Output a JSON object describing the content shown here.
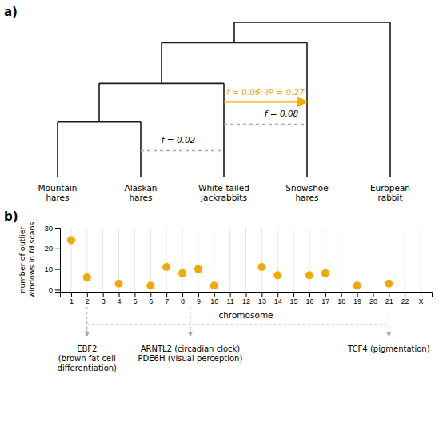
{
  "chart_data": [
    {
      "type": "tree",
      "title": "a)",
      "categories": [
        "Mountain\nhares",
        "Alaskan\nhares",
        "White-tailed\njackrabbits",
        "Snowshoe\nhares",
        "European\nrabbit"
      ],
      "annotations": [
        {
          "text": "f = 0.02",
          "categories": [
            "Alaskan\nhares",
            "White-tailed\njackrabbits"
          ],
          "line_style": "dotted"
        },
        {
          "text": "f = 0.06; IP = 0.27",
          "categories": [
            "White-tailed\njackrabbits",
            "Snowshoe\nhares"
          ],
          "line_style": "arrow",
          "color": "#F5A800"
        },
        {
          "text": "f = 0.08",
          "categories": [
            "White-tailed\njackrabbits",
            "Snowshoe\nhares"
          ],
          "line_style": "dotted"
        }
      ]
    },
    {
      "type": "scatter",
      "title": "b)",
      "categories": [
        "1",
        "2",
        "3",
        "4",
        "5",
        "6",
        "7",
        "8",
        "9",
        "10",
        "11",
        "12",
        "13",
        "14",
        "15",
        "16",
        "17",
        "18",
        "19",
        "20",
        "21",
        "22",
        "X"
      ],
      "values": [
        24,
        6,
        null,
        3,
        null,
        2,
        11,
        8,
        10,
        2,
        null,
        null,
        11,
        7,
        null,
        7,
        8,
        null,
        2,
        null,
        3,
        null,
        null
      ],
      "color": "#F5A800",
      "x_label": "chromosome",
      "y_label": "number of outlier\nwindows in fd scans",
      "ylim": [
        -1,
        30
      ],
      "yticks": [
        0,
        10,
        20,
        30
      ],
      "grid": true,
      "annotations": [
        {
          "text": "EBF2\n(brown fat cell\ndifferentiation)",
          "categories": [
            "2"
          ]
        },
        {
          "text": "ARNTL2 (circadian clock)\nPDE6H (visual perception)",
          "categories": [
            "8",
            "9"
          ]
        },
        {
          "text": "TCF4 (pigmentation)",
          "categories": [
            "21"
          ]
        }
      ]
    }
  ]
}
